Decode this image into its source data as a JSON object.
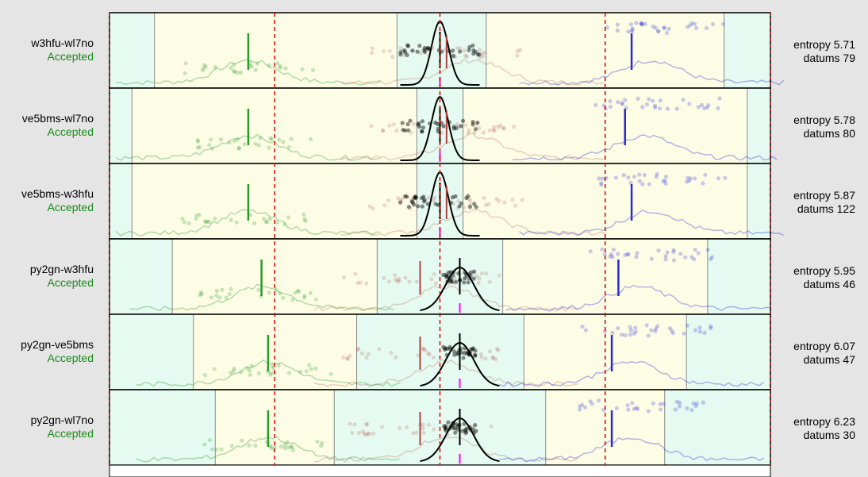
{
  "chart_data": {
    "type": "scatter",
    "panels": [
      {
        "pair": "w3hfu-wl7no",
        "status": "Accepted",
        "entropy_label": "entropy 5.71",
        "datums_label": "datums 79",
        "center_mark": 0.5,
        "green_mark": 0.21,
        "red_mark": 0.51,
        "blue_mark": 0.79,
        "black_mark": 0.5
      },
      {
        "pair": "ve5bms-wl7no",
        "status": "Accepted",
        "entropy_label": "entropy 5.78",
        "datums_label": "datums 80",
        "center_mark": 0.5,
        "green_mark": 0.21,
        "red_mark": 0.51,
        "blue_mark": 0.78,
        "black_mark": 0.5
      },
      {
        "pair": "ve5bms-w3hfu",
        "status": "Accepted",
        "entropy_label": "entropy 5.87",
        "datums_label": "datums 122",
        "center_mark": 0.5,
        "green_mark": 0.21,
        "red_mark": 0.51,
        "blue_mark": 0.79,
        "black_mark": 0.5
      },
      {
        "pair": "py2gn-w3hfu",
        "status": "Accepted",
        "entropy_label": "entropy 5.95",
        "datums_label": "datums 46",
        "center_mark": 0.53,
        "green_mark": 0.23,
        "red_mark": 0.47,
        "blue_mark": 0.77,
        "black_mark": 0.53
      },
      {
        "pair": "py2gn-ve5bms",
        "status": "Accepted",
        "entropy_label": "entropy 6.07",
        "datums_label": "datums 47",
        "center_mark": 0.53,
        "green_mark": 0.24,
        "red_mark": 0.47,
        "blue_mark": 0.76,
        "black_mark": 0.53
      },
      {
        "pair": "py2gn-wl7no",
        "status": "Accepted",
        "entropy_label": "entropy 6.23",
        "datums_label": "datums 30",
        "center_mark": 0.53,
        "green_mark": 0.24,
        "red_mark": 0.47,
        "blue_mark": 0.76,
        "black_mark": 0.53
      }
    ],
    "reference_lines": [
      0.25,
      0.5,
      0.75
    ],
    "colors": {
      "green": "#2a9a2a",
      "red": "#b04040",
      "blue": "#2a2ad6",
      "black": "#000000",
      "magenta": "#ff00ff",
      "ref_line": "#dd0000",
      "band_green": "#e5fbf1",
      "band_yellow": "#fdfde6",
      "page_bg": "#e5e5e5"
    }
  }
}
